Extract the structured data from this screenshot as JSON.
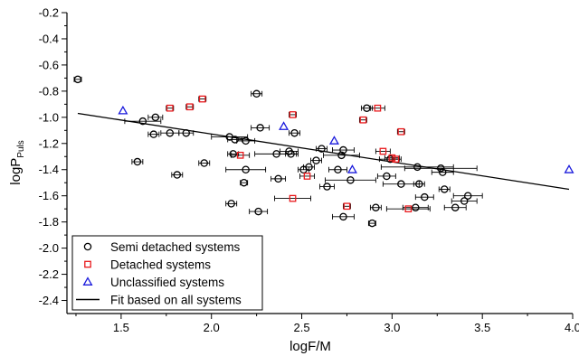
{
  "chart_data": {
    "type": "scatter",
    "xlabel": "logF/M",
    "ylabel_main": "logP",
    "ylabel_sub": "Puls",
    "xlim": [
      1.2,
      4.0
    ],
    "ylim": [
      -2.5,
      -0.2
    ],
    "xticks": [
      1.5,
      2.0,
      2.5,
      3.0,
      3.5,
      4.0
    ],
    "xtick_labels": [
      "1.5",
      "2.0",
      "2.5",
      "3.0",
      "3.5",
      "4.0"
    ],
    "yticks": [
      -0.2,
      -0.4,
      -0.6,
      -0.8,
      -1.0,
      -1.2,
      -1.4,
      -1.6,
      -1.8,
      -2.0,
      -2.2,
      -2.4
    ],
    "ytick_labels": [
      "-0.2",
      "-0.4",
      "-0.6",
      "-0.8",
      "-1.0",
      "-1.2",
      "-1.4",
      "-1.6",
      "-1.8",
      "-2.0",
      "-2.2",
      "-2.4"
    ],
    "legend_position": "bottom-left",
    "series": [
      {
        "name": "Semi detached systems",
        "marker": "circle",
        "color": "#000000",
        "points": [
          [
            1.26,
            -0.71,
            0.02
          ],
          [
            1.62,
            -1.03,
            0.1
          ],
          [
            1.69,
            -1.0,
            0.04
          ],
          [
            1.68,
            -1.13,
            0.03
          ],
          [
            1.59,
            -1.34,
            0.03
          ],
          [
            1.77,
            -1.12,
            0.05
          ],
          [
            1.86,
            -1.12,
            0.04
          ],
          [
            1.81,
            -1.44,
            0.03
          ],
          [
            1.96,
            -1.35,
            0.03
          ],
          [
            2.11,
            -1.66,
            0.03
          ],
          [
            2.1,
            -1.15,
            0.1
          ],
          [
            2.13,
            -1.17,
            0.04
          ],
          [
            2.12,
            -1.28,
            0.03
          ],
          [
            2.19,
            -1.18,
            0.05
          ],
          [
            2.19,
            -1.4,
            0.11
          ],
          [
            2.18,
            -1.5,
            0.02
          ],
          [
            2.25,
            -0.82,
            0.03
          ],
          [
            2.27,
            -1.08,
            0.05
          ],
          [
            2.26,
            -1.72,
            0.05
          ],
          [
            2.36,
            -1.28,
            0.12
          ],
          [
            2.37,
            -1.47,
            0.04
          ],
          [
            2.43,
            -1.26,
            0.05
          ],
          [
            2.44,
            -1.28,
            0.03
          ],
          [
            2.46,
            -1.12,
            0.03
          ],
          [
            2.51,
            -1.4,
            0.03
          ],
          [
            2.54,
            -1.38,
            0.03
          ],
          [
            2.58,
            -1.33,
            0.03
          ],
          [
            2.61,
            -1.24,
            0.03
          ],
          [
            2.64,
            -1.53,
            0.04
          ],
          [
            2.7,
            -1.4,
            0.05
          ],
          [
            2.73,
            -1.76,
            0.06
          ],
          [
            2.72,
            -1.29,
            0.1
          ],
          [
            2.73,
            -1.25,
            0.06
          ],
          [
            2.77,
            -1.48,
            0.14
          ],
          [
            2.86,
            -0.93,
            0.03
          ],
          [
            2.89,
            -1.81,
            0.02
          ],
          [
            2.91,
            -1.69,
            0.03
          ],
          [
            2.97,
            -1.45,
            0.05
          ],
          [
            2.99,
            -1.32,
            0.06
          ],
          [
            3.05,
            -1.51,
            0.1
          ],
          [
            3.13,
            -1.69,
            0.07
          ],
          [
            3.14,
            -1.38,
            0.2
          ],
          [
            3.15,
            -1.51,
            0.03
          ],
          [
            3.18,
            -1.61,
            0.05
          ],
          [
            3.27,
            -1.39,
            0.2
          ],
          [
            3.28,
            -1.42,
            0.06
          ],
          [
            3.29,
            -1.55,
            0.03
          ],
          [
            3.35,
            -1.69,
            0.06
          ],
          [
            3.4,
            -1.64,
            0.07
          ],
          [
            3.42,
            -1.6,
            0.08
          ]
        ]
      },
      {
        "name": "Detached systems",
        "marker": "square",
        "color": "#e8191c",
        "points": [
          [
            1.77,
            -0.93,
            0.02
          ],
          [
            1.88,
            -0.92,
            0.02
          ],
          [
            1.95,
            -0.86,
            0.02
          ],
          [
            2.16,
            -1.29,
            0.05
          ],
          [
            2.45,
            -0.98,
            0.02
          ],
          [
            2.45,
            -1.62,
            0.1
          ],
          [
            2.53,
            -1.45,
            0.04
          ],
          [
            2.75,
            -1.68,
            0.02
          ],
          [
            2.84,
            -1.02,
            0.02
          ],
          [
            2.92,
            -0.93,
            0.04
          ],
          [
            2.95,
            -1.26,
            0.04
          ],
          [
            3.0,
            -1.31,
            0.04
          ],
          [
            3.02,
            -1.32,
            0.02
          ],
          [
            3.05,
            -1.11,
            0.02
          ],
          [
            3.09,
            -1.7,
            0.12
          ]
        ]
      },
      {
        "name": "Unclassified systems",
        "marker": "triangle",
        "color": "#1a1adc",
        "points": [
          [
            1.51,
            -0.95
          ],
          [
            2.4,
            -1.07
          ],
          [
            2.68,
            -1.18
          ],
          [
            2.78,
            -1.4
          ],
          [
            3.98,
            -1.4
          ]
        ]
      }
    ],
    "fit": {
      "name": "Fit based on all systems",
      "type": "line",
      "color": "#000000",
      "x": [
        1.26,
        3.98
      ],
      "y": [
        -0.97,
        -1.55
      ]
    }
  }
}
